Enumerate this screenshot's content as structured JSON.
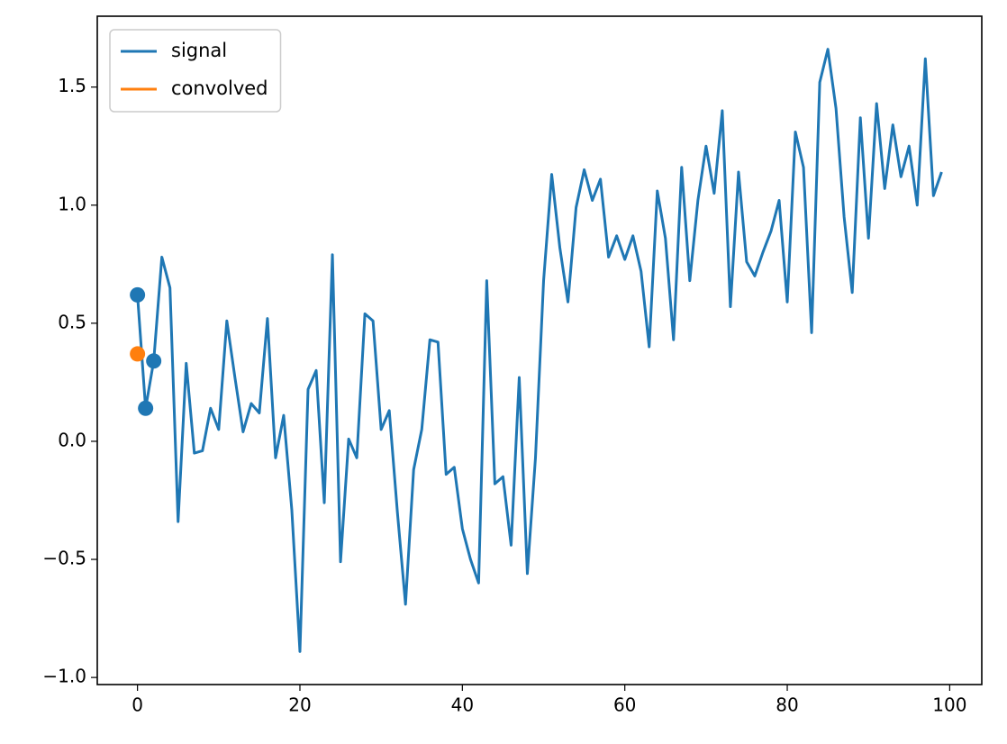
{
  "chart_data": {
    "type": "line",
    "series": [
      {
        "name": "signal",
        "color": "#1f77b4",
        "x": [
          0,
          1,
          2,
          3,
          4,
          5,
          6,
          7,
          8,
          9,
          10,
          11,
          12,
          13,
          14,
          15,
          16,
          17,
          18,
          19,
          20,
          21,
          22,
          23,
          24,
          25,
          26,
          27,
          28,
          29,
          30,
          31,
          32,
          33,
          34,
          35,
          36,
          37,
          38,
          39,
          40,
          41,
          42,
          43,
          44,
          45,
          46,
          47,
          48,
          49,
          50,
          51,
          52,
          53,
          54,
          55,
          56,
          57,
          58,
          59,
          60,
          61,
          62,
          63,
          64,
          65,
          66,
          67,
          68,
          69,
          70,
          71,
          72,
          73,
          74,
          75,
          76,
          77,
          78,
          79,
          80,
          81,
          82,
          83,
          84,
          85,
          86,
          87,
          88,
          89,
          90,
          91,
          92,
          93,
          94,
          95,
          96,
          97,
          98,
          99
        ],
        "values": [
          0.62,
          0.14,
          0.34,
          0.78,
          0.65,
          -0.34,
          0.33,
          -0.05,
          -0.04,
          0.14,
          0.05,
          0.51,
          0.27,
          0.04,
          0.16,
          0.12,
          0.52,
          -0.07,
          0.11,
          -0.29,
          -0.89,
          0.22,
          0.3,
          -0.26,
          0.79,
          -0.51,
          0.01,
          -0.07,
          0.54,
          0.51,
          0.05,
          0.13,
          -0.3,
          -0.69,
          -0.12,
          0.05,
          0.43,
          0.42,
          -0.14,
          -0.11,
          -0.37,
          -0.5,
          -0.6,
          0.68,
          -0.18,
          -0.15,
          -0.44,
          0.27,
          -0.56,
          -0.07,
          0.68,
          1.13,
          0.82,
          0.59,
          0.99,
          1.15,
          1.02,
          1.11,
          0.78,
          0.87,
          0.77,
          0.87,
          0.72,
          0.4,
          1.06,
          0.86,
          0.43,
          1.16,
          0.68,
          1.02,
          1.25,
          1.05,
          1.4,
          0.57,
          1.14,
          0.76,
          0.7,
          0.8,
          0.89,
          1.02,
          0.59,
          1.31,
          1.16,
          0.46,
          1.52,
          1.66,
          1.41,
          0.95,
          0.63,
          1.37,
          0.86,
          1.43,
          1.07,
          1.34,
          1.12,
          1.25,
          1.0,
          1.62,
          1.04,
          1.14
        ],
        "marker_indices": [
          0,
          1,
          2
        ]
      },
      {
        "name": "convolved",
        "color": "#ff7f0e",
        "x": [
          0
        ],
        "values": [
          0.37
        ],
        "marker_indices": [
          0
        ]
      }
    ],
    "xlim": [
      -4.95,
      103.95
    ],
    "xticks": [
      0,
      20,
      40,
      60,
      80,
      100
    ],
    "ylim": [
      -1.03,
      1.8
    ],
    "yticks": [
      {
        "value": -1.0,
        "label": "−1.0"
      },
      {
        "value": -0.5,
        "label": "−0.5"
      },
      {
        "value": 0.0,
        "label": "0.0"
      },
      0.5,
      {
        "value": 1.0,
        "label": "1.0"
      },
      1.5
    ],
    "legend": "upper left",
    "grid": false
  }
}
